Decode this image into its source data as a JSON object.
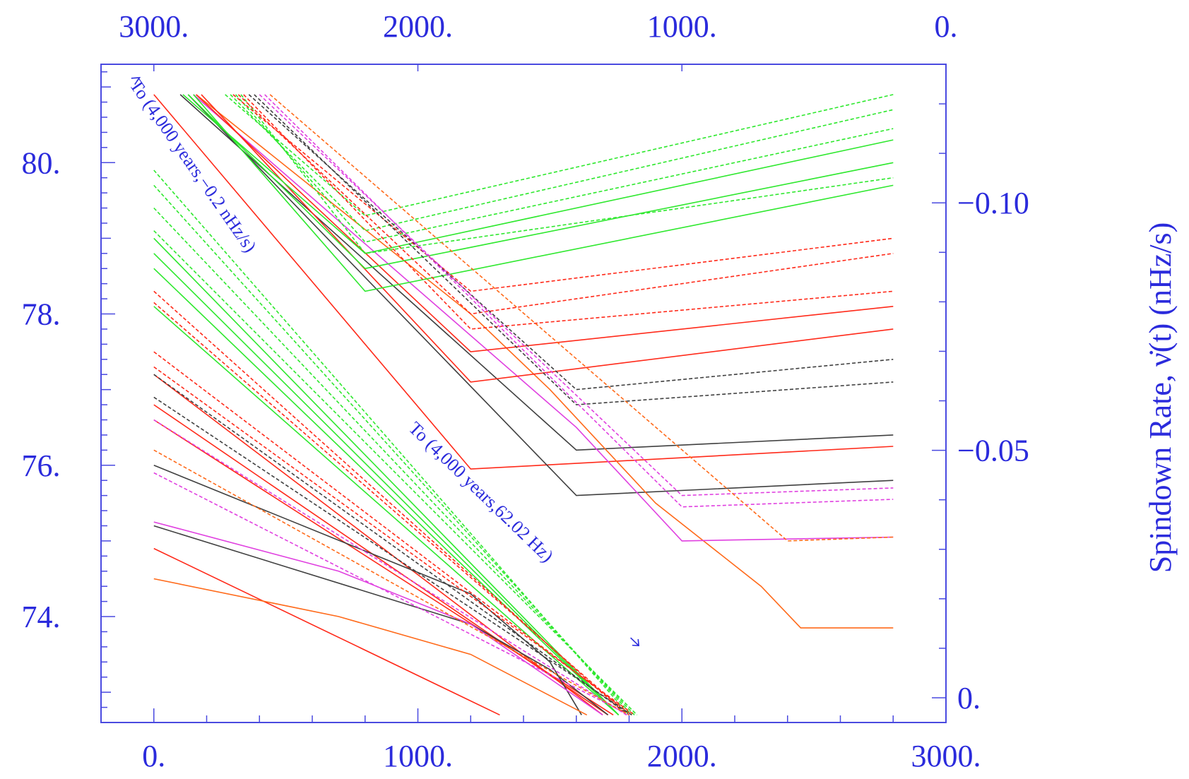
{
  "chart_data": {
    "type": "line",
    "title": "",
    "xlabel": "",
    "ylabel": "",
    "y2label": "Spindown Rate, ν̇(t) (nHz/s)",
    "grid": false,
    "xlim": [
      -200,
      3000
    ],
    "ylim": [
      72.6,
      81.3
    ],
    "x_ticks": [
      "0.",
      "1000.",
      "2000.",
      "3000."
    ],
    "x_tick_values": [
      0,
      1000,
      2000,
      3000
    ],
    "x2_ticks": [
      "3000.",
      "2000.",
      "1000.",
      "0."
    ],
    "x2_tick_values": [
      3000,
      2000,
      1000,
      0
    ],
    "x2lim": [
      3200,
      0
    ],
    "y_ticks": [
      "74.",
      "76.",
      "78.",
      "80."
    ],
    "y_tick_values": [
      74,
      76,
      78,
      80
    ],
    "y2_ticks": [
      "0.",
      "−0.05",
      "−0.10"
    ],
    "y2_tick_values": [
      0,
      -0.05,
      -0.1
    ],
    "y2lim": [
      0.005,
      -0.128
    ],
    "colors": {
      "axis": "#4a4ae0",
      "text": "#2b2bdc",
      "red": "#ff2a1a",
      "green": "#2ee82e",
      "black": "#404040",
      "orange": "#ff6a1a",
      "magenta": "#e040e0"
    },
    "annotations": [
      {
        "text": "To (4,000 years,−0.2 nHz/s)",
        "arrow": "start"
      },
      {
        "text": "To (4,000 years,62.02 Hz)",
        "arrow": "end"
      }
    ],
    "series": [
      {
        "color": "red",
        "dash": false,
        "points": [
          [
            0,
            80.9
          ],
          [
            1200,
            75.95
          ],
          [
            2800,
            76.25
          ]
        ]
      },
      {
        "color": "black",
        "dash": false,
        "points": [
          [
            100,
            80.9
          ],
          [
            1600,
            76.2
          ],
          [
            2800,
            76.4
          ]
        ]
      },
      {
        "color": "black",
        "dash": false,
        "points": [
          [
            130,
            80.9
          ],
          [
            1600,
            75.6
          ],
          [
            2800,
            75.8
          ]
        ]
      },
      {
        "color": "orange",
        "dash": false,
        "points": [
          [
            160,
            80.9
          ],
          [
            1200,
            78.0
          ],
          [
            1500,
            77.0
          ],
          [
            1900,
            75.5
          ],
          [
            2300,
            74.4
          ],
          [
            2450,
            73.85
          ],
          [
            2800,
            73.85
          ]
        ]
      },
      {
        "color": "magenta",
        "dash": false,
        "points": [
          [
            150,
            80.9
          ],
          [
            1600,
            76.5
          ],
          [
            2000,
            75.0
          ],
          [
            2800,
            75.05
          ]
        ]
      },
      {
        "color": "red",
        "dash": false,
        "points": [
          [
            160,
            80.9
          ],
          [
            1200,
            77.5
          ],
          [
            2800,
            78.1
          ]
        ]
      },
      {
        "color": "red",
        "dash": false,
        "points": [
          [
            180,
            80.9
          ],
          [
            1200,
            77.1
          ],
          [
            2800,
            77.8
          ]
        ]
      },
      {
        "color": "green",
        "dash": false,
        "points": [
          [
            110,
            80.9
          ],
          [
            800,
            78.8
          ],
          [
            2800,
            80.3
          ]
        ]
      },
      {
        "color": "green",
        "dash": false,
        "points": [
          [
            130,
            80.9
          ],
          [
            800,
            78.6
          ],
          [
            2800,
            80.0
          ]
        ]
      },
      {
        "color": "green",
        "dash": false,
        "points": [
          [
            150,
            80.9
          ],
          [
            800,
            78.3
          ],
          [
            2800,
            79.7
          ]
        ]
      },
      {
        "color": "green",
        "dash": true,
        "points": [
          [
            270,
            80.9
          ],
          [
            800,
            79.3
          ],
          [
            2800,
            80.9
          ]
        ]
      },
      {
        "color": "green",
        "dash": true,
        "points": [
          [
            290,
            80.9
          ],
          [
            800,
            79.1
          ],
          [
            2800,
            80.7
          ]
        ]
      },
      {
        "color": "green",
        "dash": true,
        "points": [
          [
            310,
            80.9
          ],
          [
            800,
            78.95
          ],
          [
            2800,
            80.45
          ]
        ]
      },
      {
        "color": "green",
        "dash": true,
        "points": [
          [
            330,
            80.9
          ],
          [
            800,
            78.8
          ],
          [
            2800,
            79.8
          ]
        ]
      },
      {
        "color": "red",
        "dash": true,
        "points": [
          [
            300,
            80.9
          ],
          [
            1200,
            78.3
          ],
          [
            2800,
            79.0
          ]
        ]
      },
      {
        "color": "red",
        "dash": true,
        "points": [
          [
            320,
            80.9
          ],
          [
            1200,
            78.0
          ],
          [
            2800,
            78.8
          ]
        ]
      },
      {
        "color": "red",
        "dash": true,
        "points": [
          [
            340,
            80.9
          ],
          [
            1200,
            77.8
          ],
          [
            2800,
            78.3
          ]
        ]
      },
      {
        "color": "black",
        "dash": true,
        "points": [
          [
            360,
            80.9
          ],
          [
            1600,
            77.0
          ],
          [
            2800,
            77.4
          ]
        ]
      },
      {
        "color": "black",
        "dash": true,
        "points": [
          [
            380,
            80.9
          ],
          [
            1600,
            76.8
          ],
          [
            2800,
            77.1
          ]
        ]
      },
      {
        "color": "magenta",
        "dash": true,
        "points": [
          [
            400,
            80.9
          ],
          [
            2000,
            75.6
          ],
          [
            2800,
            75.7
          ]
        ]
      },
      {
        "color": "magenta",
        "dash": true,
        "points": [
          [
            420,
            80.9
          ],
          [
            2000,
            75.45
          ],
          [
            2800,
            75.55
          ]
        ]
      },
      {
        "color": "orange",
        "dash": true,
        "points": [
          [
            440,
            80.9
          ],
          [
            2400,
            75.0
          ],
          [
            2800,
            75.05
          ]
        ]
      },
      {
        "color": "red",
        "dash": false,
        "points": [
          [
            0,
            74.9
          ],
          [
            1310,
            72.7
          ]
        ]
      },
      {
        "color": "red",
        "dash": false,
        "points": [
          [
            0,
            77.2
          ],
          [
            1700,
            72.7
          ]
        ]
      },
      {
        "color": "red",
        "dash": false,
        "points": [
          [
            0,
            76.8
          ],
          [
            1720,
            72.7
          ]
        ]
      },
      {
        "color": "red",
        "dash": false,
        "points": [
          [
            0,
            76.6
          ],
          [
            1740,
            72.7
          ]
        ]
      },
      {
        "color": "black",
        "dash": false,
        "points": [
          [
            0,
            76.0
          ],
          [
            1200,
            74.3
          ],
          [
            1500,
            73.4
          ],
          [
            1620,
            72.7
          ]
        ]
      },
      {
        "color": "black",
        "dash": false,
        "points": [
          [
            0,
            75.2
          ],
          [
            1200,
            73.9
          ],
          [
            1500,
            73.3
          ],
          [
            1720,
            72.7
          ]
        ]
      },
      {
        "color": "orange",
        "dash": false,
        "points": [
          [
            0,
            74.5
          ],
          [
            700,
            74.0
          ],
          [
            1200,
            73.5
          ],
          [
            1640,
            72.7
          ]
        ]
      },
      {
        "color": "magenta",
        "dash": false,
        "points": [
          [
            0,
            75.25
          ],
          [
            700,
            74.6
          ],
          [
            1200,
            73.9
          ],
          [
            1700,
            72.7
          ]
        ]
      },
      {
        "color": "green",
        "dash": false,
        "points": [
          [
            0,
            79.0
          ],
          [
            1760,
            72.7
          ]
        ]
      },
      {
        "color": "green",
        "dash": false,
        "points": [
          [
            0,
            78.8
          ],
          [
            1760,
            72.7
          ]
        ]
      },
      {
        "color": "green",
        "dash": false,
        "points": [
          [
            0,
            78.6
          ],
          [
            1760,
            72.7
          ]
        ]
      },
      {
        "color": "green",
        "dash": false,
        "points": [
          [
            0,
            78.1
          ],
          [
            1760,
            72.7
          ]
        ]
      },
      {
        "color": "green",
        "dash": true,
        "points": [
          [
            0,
            79.9
          ],
          [
            1800,
            72.7
          ]
        ]
      },
      {
        "color": "green",
        "dash": true,
        "points": [
          [
            0,
            79.7
          ],
          [
            1810,
            72.7
          ]
        ]
      },
      {
        "color": "green",
        "dash": true,
        "points": [
          [
            0,
            79.4
          ],
          [
            1820,
            72.7
          ]
        ]
      },
      {
        "color": "green",
        "dash": true,
        "points": [
          [
            0,
            79.1
          ],
          [
            1830,
            72.7
          ]
        ]
      },
      {
        "color": "red",
        "dash": true,
        "points": [
          [
            0,
            78.3
          ],
          [
            1790,
            72.7
          ]
        ]
      },
      {
        "color": "red",
        "dash": true,
        "points": [
          [
            0,
            78.15
          ],
          [
            1800,
            72.7
          ]
        ]
      },
      {
        "color": "red",
        "dash": true,
        "points": [
          [
            0,
            77.5
          ],
          [
            1810,
            72.7
          ]
        ]
      },
      {
        "color": "red",
        "dash": true,
        "points": [
          [
            0,
            77.3
          ],
          [
            1820,
            72.7
          ]
        ]
      },
      {
        "color": "black",
        "dash": true,
        "points": [
          [
            0,
            77.2
          ],
          [
            1800,
            72.7
          ]
        ]
      },
      {
        "color": "black",
        "dash": true,
        "points": [
          [
            0,
            76.9
          ],
          [
            1810,
            72.7
          ]
        ]
      },
      {
        "color": "magenta",
        "dash": true,
        "points": [
          [
            0,
            76.6
          ],
          [
            1790,
            72.7
          ]
        ]
      },
      {
        "color": "magenta",
        "dash": true,
        "points": [
          [
            0,
            75.9
          ],
          [
            1800,
            72.7
          ]
        ]
      },
      {
        "color": "orange",
        "dash": true,
        "points": [
          [
            0,
            76.2
          ],
          [
            1800,
            72.7
          ]
        ]
      }
    ]
  }
}
